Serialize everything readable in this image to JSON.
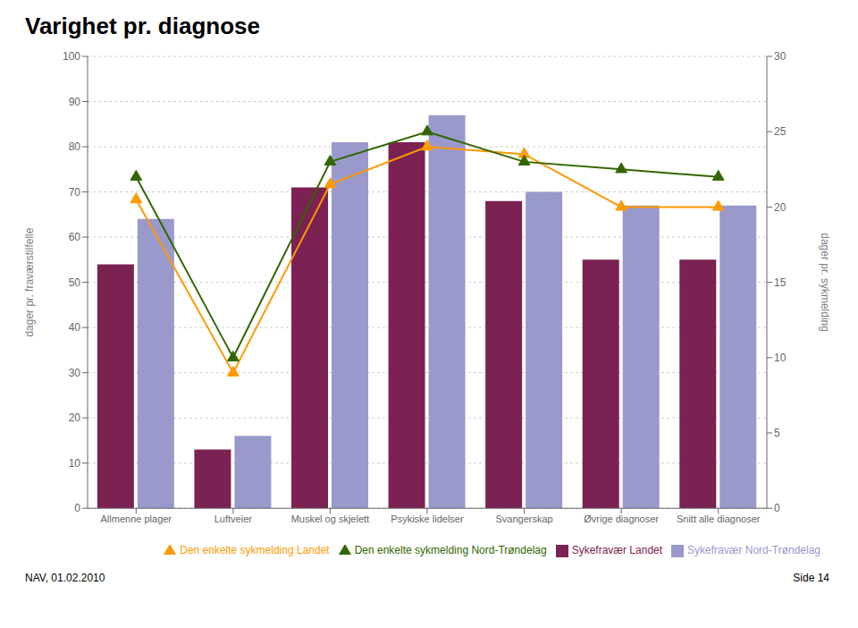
{
  "chart_data": {
    "type": "bar",
    "title": "Varighet pr. diagnose",
    "categories": [
      "Allmenne plager",
      "Luftveier",
      "Muskel og skjelett",
      "Psykiske lidelser",
      "Svangerskap",
      "Øvrige diagnoser",
      "Snitt alle diagnoser"
    ],
    "series": [
      {
        "name": "Sykefravær Landet",
        "type": "bar",
        "color": "#7b2252",
        "values": [
          54,
          13,
          71,
          81,
          68,
          55,
          55
        ]
      },
      {
        "name": "Sykefravær Nord-Trøndelag",
        "type": "bar",
        "color": "#9999cc",
        "values": [
          64,
          16,
          81,
          87,
          70,
          67,
          67
        ]
      },
      {
        "name": "Den enkelte sykmelding Landet",
        "type": "line",
        "axis": "y2",
        "marker": "triangle",
        "color": "#ff9900",
        "values": [
          20.5,
          9.0,
          21.5,
          24.0,
          23.5,
          20.0,
          20.0
        ]
      },
      {
        "name": "Den enkelte sykmelding Nord-Trøndelag",
        "type": "line",
        "axis": "y2",
        "marker": "triangle",
        "color": "#336600",
        "values": [
          22.0,
          10.0,
          23.0,
          25.0,
          23.0,
          22.5,
          22.0
        ]
      }
    ],
    "ylabel": "dager pr. fraværstilfelle",
    "y2label": "dager pr. sykmelding",
    "ylim": [
      0,
      100
    ],
    "yticks": [
      0,
      10,
      20,
      30,
      40,
      50,
      60,
      70,
      80,
      90,
      100
    ],
    "y2lim": [
      0,
      30
    ],
    "y2ticks": [
      0,
      5,
      10,
      15,
      20,
      25,
      30
    ],
    "grid": true,
    "legend": "lower right",
    "annotations": [
      "NAV, 01.02.2010",
      "Side 14"
    ]
  }
}
